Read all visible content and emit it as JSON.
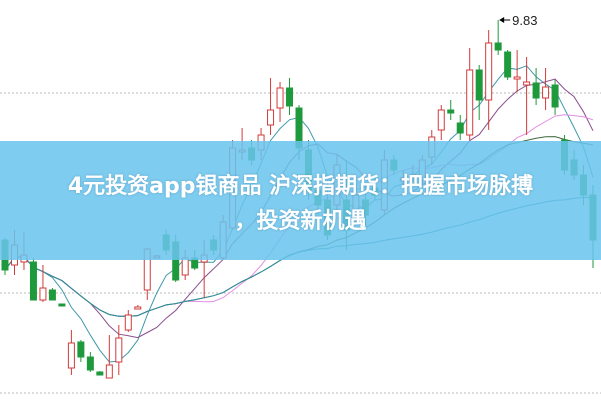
{
  "title": {
    "line1": "4元投资app银商品 沪深指期货：把握市场脉搏",
    "line2": "，投资新机遇"
  },
  "colors": {
    "up": "#d23a3a",
    "down": "#1e9a3c",
    "banner": "#69c4ec",
    "ma5": "#3f98a8",
    "ma10": "#8a4c8c",
    "ma20": "#e48ee4",
    "ma30": "#3d6b3d",
    "ma60": "#2c8fa0",
    "grid": "#b8b8b8"
  },
  "chart_data": {
    "type": "candlestick",
    "title": "",
    "xlabel": "",
    "ylabel": "",
    "grid": "horizontal dotted",
    "max_label": "9.83",
    "ylim": [
      6.1,
      10.0
    ],
    "moving_averages": [
      5,
      10,
      20,
      30,
      60
    ],
    "ohlc": [
      [
        7.63,
        7.65,
        7.28,
        7.33
      ],
      [
        7.38,
        7.73,
        7.28,
        7.58
      ],
      [
        7.41,
        7.71,
        7.33,
        7.48
      ],
      [
        7.41,
        7.45,
        7.03,
        7.03
      ],
      [
        7.03,
        7.38,
        7.01,
        7.15
      ],
      [
        7.13,
        7.15,
        7.03,
        7.03
      ],
      [
        6.99,
        6.99,
        6.97,
        6.97
      ],
      [
        6.35,
        6.73,
        6.28,
        6.6
      ],
      [
        6.61,
        6.63,
        6.41,
        6.46
      ],
      [
        6.46,
        6.51,
        6.31,
        6.33
      ],
      [
        6.31,
        6.32,
        6.28,
        6.28
      ],
      [
        6.25,
        6.68,
        6.25,
        6.38
      ],
      [
        6.41,
        6.78,
        6.28,
        6.65
      ],
      [
        6.73,
        6.93,
        6.71,
        6.88
      ],
      [
        6.94,
        6.98,
        6.94,
        6.96
      ],
      [
        7.13,
        7.55,
        7.03,
        7.54
      ],
      [
        7.45,
        7.48,
        7.45,
        7.47
      ],
      [
        7.68,
        7.73,
        7.48,
        7.53
      ],
      [
        7.61,
        7.68,
        7.21,
        7.23
      ],
      [
        7.28,
        7.53,
        7.23,
        7.45
      ],
      [
        7.45,
        7.53,
        7.33,
        7.35
      ],
      [
        7.41,
        7.63,
        7.05,
        7.48
      ],
      [
        7.63,
        7.68,
        7.48,
        7.53
      ],
      [
        7.45,
        7.88,
        7.43,
        7.81
      ],
      [
        7.75,
        8.63,
        7.73,
        8.55
      ],
      [
        8.51,
        8.75,
        8.43,
        8.53
      ],
      [
        8.55,
        8.63,
        8.38,
        8.43
      ],
      [
        8.53,
        8.75,
        8.43,
        8.68
      ],
      [
        8.78,
        9.25,
        8.68,
        8.93
      ],
      [
        8.95,
        9.21,
        8.81,
        9.15
      ],
      [
        9.15,
        9.25,
        8.88,
        8.97
      ],
      [
        8.95,
        8.98,
        8.43,
        8.55
      ],
      [
        8.53,
        8.63,
        8.03,
        8.13
      ],
      [
        8.13,
        8.28,
        7.88,
        7.98
      ],
      [
        8.03,
        8.23,
        7.63,
        7.68
      ],
      [
        7.98,
        8.48,
        7.93,
        8.38
      ],
      [
        8.03,
        8.43,
        7.53,
        7.73
      ],
      [
        7.88,
        8.23,
        7.78,
        8.08
      ],
      [
        8.03,
        8.18,
        7.78,
        7.88
      ],
      [
        8.15,
        8.28,
        8.03,
        8.08
      ],
      [
        7.93,
        8.53,
        7.88,
        8.43
      ],
      [
        8.43,
        8.48,
        8.28,
        8.33
      ],
      [
        8.22,
        8.33,
        8.18,
        8.25
      ],
      [
        8.25,
        8.38,
        8.21,
        8.28
      ],
      [
        8.23,
        8.48,
        8.18,
        8.43
      ],
      [
        8.46,
        8.73,
        8.38,
        8.66
      ],
      [
        8.73,
        8.98,
        8.63,
        8.93
      ],
      [
        8.93,
        9.03,
        8.83,
        8.9
      ],
      [
        8.8,
        8.88,
        8.63,
        8.7
      ],
      [
        8.68,
        9.55,
        8.63,
        9.33
      ],
      [
        9.33,
        9.38,
        8.83,
        9.03
      ],
      [
        9.03,
        9.73,
        8.73,
        9.6
      ],
      [
        9.6,
        9.83,
        9.48,
        9.53
      ],
      [
        9.51,
        9.53,
        9.23,
        9.26
      ],
      [
        9.24,
        9.53,
        9.11,
        9.26
      ],
      [
        9.18,
        9.46,
        8.68,
        9.21
      ],
      [
        9.2,
        9.35,
        8.98,
        9.05
      ],
      [
        9.05,
        9.35,
        8.93,
        9.16
      ],
      [
        9.18,
        9.23,
        8.88,
        8.96
      ],
      [
        8.63,
        8.68,
        8.28,
        8.33
      ],
      [
        8.43,
        8.53,
        8.23,
        8.28
      ],
      [
        8.28,
        8.38,
        7.98,
        8.08
      ],
      [
        8.08,
        8.18,
        7.35,
        7.63
      ]
    ]
  }
}
